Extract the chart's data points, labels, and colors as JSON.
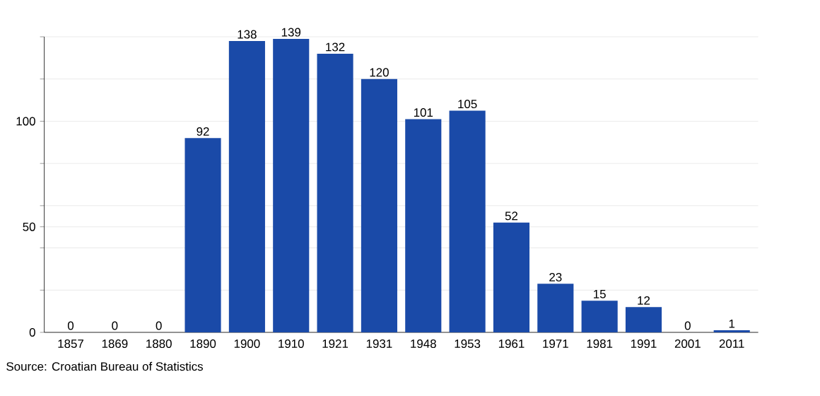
{
  "chart_data": {
    "type": "bar",
    "categories": [
      "1857",
      "1869",
      "1880",
      "1890",
      "1900",
      "1910",
      "1921",
      "1931",
      "1948",
      "1953",
      "1961",
      "1971",
      "1981",
      "1991",
      "2001",
      "2011"
    ],
    "values": [
      0,
      0,
      0,
      92,
      138,
      139,
      132,
      120,
      101,
      105,
      52,
      23,
      15,
      12,
      0,
      1
    ],
    "color": "#1a4aa8",
    "ylim": [
      0,
      140
    ],
    "yticks": [
      0,
      {
        "value": 20,
        "label": null
      },
      {
        "value": 40,
        "label": null
      },
      50,
      {
        "value": 60,
        "label": null
      },
      {
        "value": 80,
        "label": null
      },
      100,
      {
        "value": 120,
        "label": null
      },
      {
        "value": 140,
        "label": null
      }
    ],
    "grid": "y",
    "data_labels": true,
    "annotations": [
      "Source: Croatian Bureau of Statistics"
    ]
  }
}
